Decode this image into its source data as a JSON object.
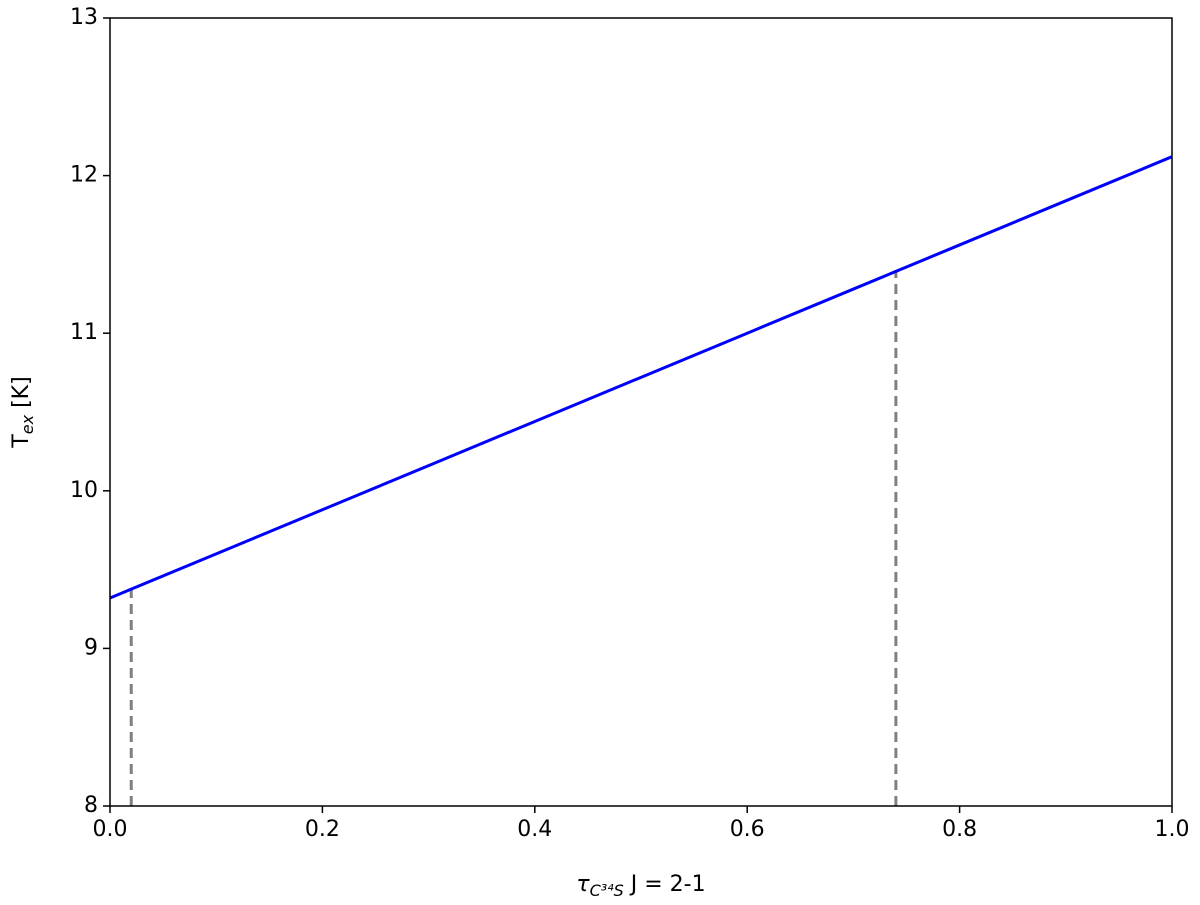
{
  "chart_data": {
    "type": "line",
    "x_label": {
      "symbol": "τ",
      "sub": "C³⁴S",
      "rest": " J = 2-1"
    },
    "y_label": {
      "symbol": "T",
      "sub": "ex",
      "rest": " [K]"
    },
    "x": [
      0,
      0.1,
      0.2,
      0.3,
      0.4,
      0.5,
      0.6,
      0.7,
      0.8,
      0.9,
      1.0
    ],
    "series": [
      {
        "color": "#0000ff",
        "values": [
          9.32,
          9.6,
          9.88,
          10.16,
          10.44,
          10.72,
          11.0,
          11.28,
          11.56,
          11.84,
          12.12
        ]
      }
    ],
    "vlines": [
      {
        "x": 0.02,
        "y": 9.38,
        "color": "#808080"
      },
      {
        "x": 0.74,
        "y": 11.4,
        "color": "#808080"
      }
    ],
    "xlim": [
      0,
      1
    ],
    "ylim": [
      8,
      13
    ],
    "xticks": [
      {
        "value": 0,
        "label": "0.0"
      },
      0.2,
      0.4,
      0.6,
      0.8,
      {
        "value": 1,
        "label": "1.0"
      }
    ],
    "yticks": [
      8,
      9,
      10,
      11,
      12,
      13
    ]
  }
}
